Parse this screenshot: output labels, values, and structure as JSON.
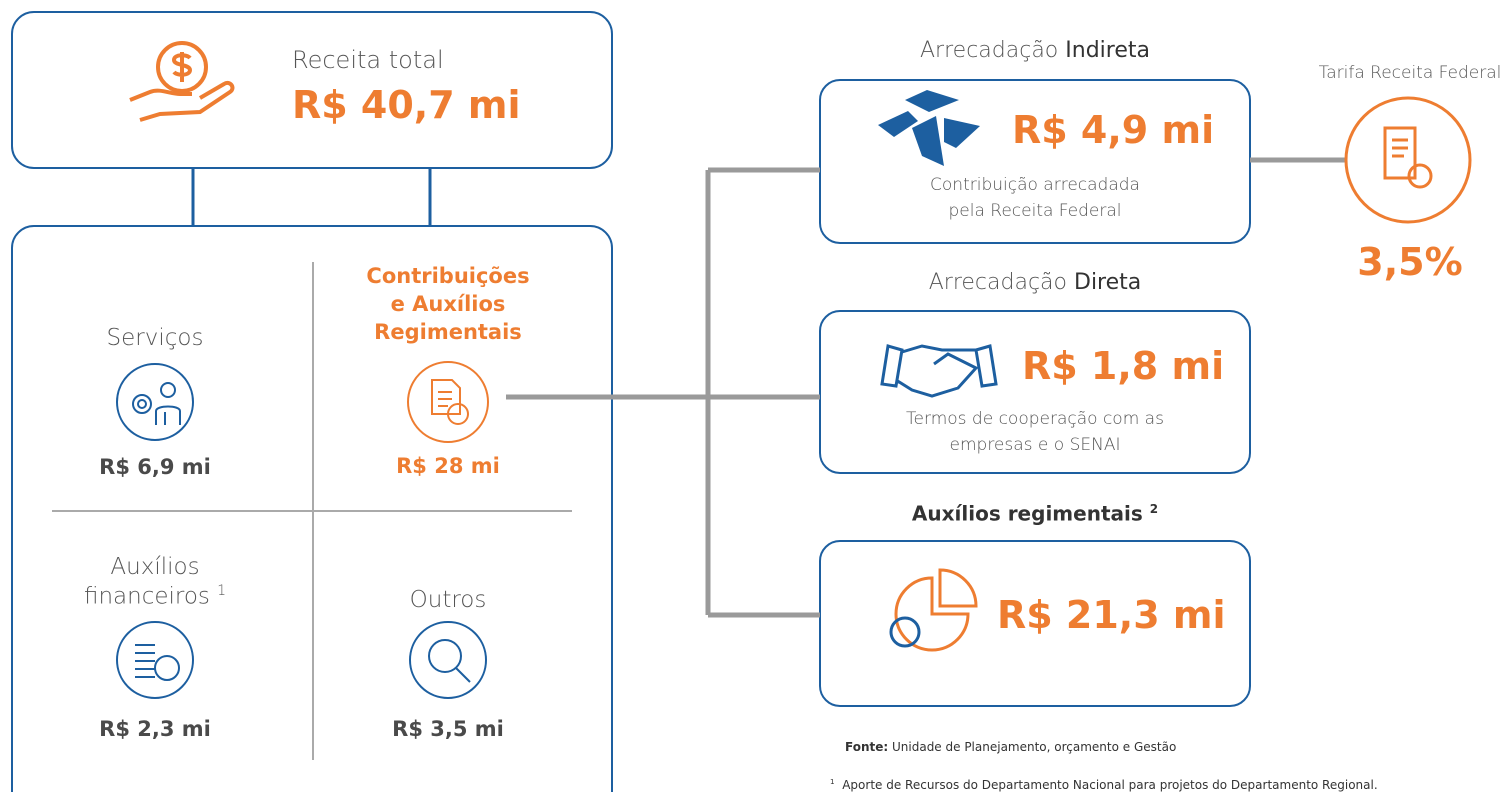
{
  "summary": {
    "label": "Receita total",
    "value": "R$ 40,7 mi"
  },
  "categories": [
    {
      "label_lines": [
        "Serviços"
      ],
      "value": "R$ 6,9 mi"
    },
    {
      "label_lines": [
        "Contribuições",
        "e Auxílios",
        "Regimentais"
      ],
      "value": "R$ 28 mi"
    },
    {
      "label_lines": [
        "Auxílios",
        "financeiros"
      ],
      "note_marker": "1",
      "value": "R$ 2,3 mi"
    },
    {
      "label_lines": [
        "Outros"
      ],
      "value": "R$ 3,5 mi"
    }
  ],
  "breakdown": [
    {
      "heading_regular": "Arrecadação",
      "heading_bold": "Indireta",
      "value": "R$ 4,9 mi",
      "description_lines": [
        "Contribuição arrecadada",
        "pela Receita Federal"
      ]
    },
    {
      "heading_regular": "Arrecadação",
      "heading_bold": "Direta",
      "value": "R$ 1,8 mi",
      "description_lines": [
        "Termos de cooperação com as",
        "empresas e o SENAI"
      ]
    },
    {
      "heading_bold": "Auxílios regimentais",
      "note_marker": "2",
      "value": "R$ 21,3 mi"
    }
  ],
  "fee": {
    "label": "Tarifa Receita Federal",
    "value": "3,5%"
  },
  "source": {
    "label": "Fonte:",
    "text": "Unidade de Planejamento, orçamento e Gestão"
  },
  "footnote": {
    "marker": "1",
    "text": "Aporte de Recursos do Departamento Nacional para projetos do Departamento Regional."
  }
}
